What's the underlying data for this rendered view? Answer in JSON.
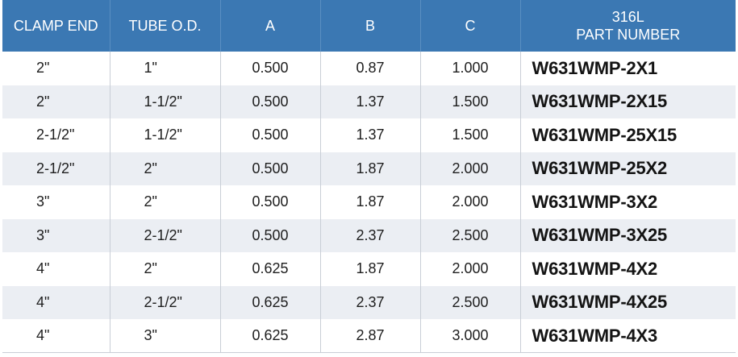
{
  "table": {
    "headers": {
      "clamp_end": "CLAMP END",
      "tube_od": "TUBE O.D.",
      "a": "A",
      "b": "B",
      "c": "C",
      "part_line1": "316L",
      "part_line2": "PART NUMBER"
    },
    "colors": {
      "header_bg": "#3b78b3",
      "header_text": "#ffffff",
      "stripe": "#ebeef3"
    },
    "rows": [
      {
        "clamp_end": "2\"",
        "tube_od": "1\"",
        "a": "0.500",
        "b": "0.87",
        "c": "1.000",
        "part": "W631WMP-2X1"
      },
      {
        "clamp_end": "2\"",
        "tube_od": "1-1/2\"",
        "a": "0.500",
        "b": "1.37",
        "c": "1.500",
        "part": "W631WMP-2X15"
      },
      {
        "clamp_end": "2-1/2\"",
        "tube_od": "1-1/2\"",
        "a": "0.500",
        "b": "1.37",
        "c": "1.500",
        "part": "W631WMP-25X15"
      },
      {
        "clamp_end": "2-1/2\"",
        "tube_od": "2\"",
        "a": "0.500",
        "b": "1.87",
        "c": "2.000",
        "part": "W631WMP-25X2"
      },
      {
        "clamp_end": "3\"",
        "tube_od": "2\"",
        "a": "0.500",
        "b": "1.87",
        "c": "2.000",
        "part": "W631WMP-3X2"
      },
      {
        "clamp_end": "3\"",
        "tube_od": "2-1/2\"",
        "a": "0.500",
        "b": "2.37",
        "c": "2.500",
        "part": "W631WMP-3X25"
      },
      {
        "clamp_end": "4\"",
        "tube_od": "2\"",
        "a": "0.625",
        "b": "1.87",
        "c": "2.000",
        "part": "W631WMP-4X2"
      },
      {
        "clamp_end": "4\"",
        "tube_od": "2-1/2\"",
        "a": "0.625",
        "b": "2.37",
        "c": "2.500",
        "part": "W631WMP-4X25"
      },
      {
        "clamp_end": "4\"",
        "tube_od": "3\"",
        "a": "0.625",
        "b": "2.87",
        "c": "3.000",
        "part": "W631WMP-4X3"
      }
    ]
  }
}
